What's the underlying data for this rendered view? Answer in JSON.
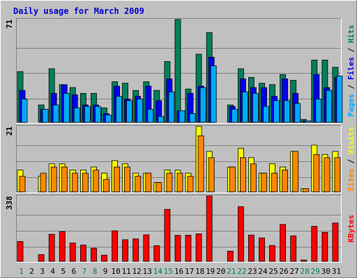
{
  "chart_data": {
    "type": "bar",
    "title": "Daily usage for March 2009",
    "days": [
      "1",
      "2",
      "3",
      "4",
      "5",
      "6",
      "7",
      "8",
      "9",
      "10",
      "11",
      "12",
      "13",
      "14",
      "15",
      "16",
      "17",
      "18",
      "19",
      "20",
      "21",
      "22",
      "23",
      "24",
      "25",
      "26",
      "27",
      "28",
      "29",
      "30",
      "31"
    ],
    "weekend_days": [
      "1",
      "7",
      "8",
      "14",
      "15",
      "21",
      "22",
      "28",
      "29"
    ],
    "panels": [
      {
        "id": "top",
        "max_label": "71",
        "ylim": [
          0,
          71
        ],
        "series": [
          {
            "name": "Hits",
            "color": "#00805c",
            "values": [
              35,
              0,
              12,
              37,
              26,
              24,
              20,
              20,
              10,
              28,
              27,
              22,
              28,
              22,
              42,
              71,
              23,
              47,
              62,
              0,
              12,
              37,
              31,
              27,
              26,
              33,
              29,
              2,
              43,
              43,
              38
            ]
          },
          {
            "name": "Files",
            "color": "#0000ee",
            "values": [
              22,
              0,
              9,
              20,
              26,
              19,
              12,
              12,
              6,
              25,
              16,
              18,
              25,
              15,
              30,
              8,
              20,
              25,
              45,
              0,
              11,
              30,
              24,
              24,
              18,
              30,
              20,
              1,
              33,
              24,
              31
            ]
          },
          {
            "name": "Pages",
            "color": "#00aaff",
            "values": [
              16,
              0,
              9,
              12,
              20,
              10,
              11,
              11,
              5,
              18,
              15,
              16,
              9,
              4,
              21,
              8,
              6,
              24,
              39,
              0,
              9,
              21,
              20,
              11,
              15,
              15,
              13,
              1,
              16,
              22,
              32
            ]
          }
        ],
        "side_labels": [
          {
            "text": "Pages",
            "color": "#00aaff"
          },
          {
            "text": " / ",
            "color": "#000000"
          },
          {
            "text": "Files",
            "color": "#0000ee"
          },
          {
            "text": " / ",
            "color": "#000000"
          },
          {
            "text": "Hits",
            "color": "#00805c"
          }
        ]
      },
      {
        "id": "middle",
        "max_label": "21",
        "ylim": [
          0,
          21
        ],
        "series": [
          {
            "name": "Visits",
            "color": "#ffff00",
            "values": [
              7,
              0,
              5,
              9,
              9,
              7,
              7,
              8,
              6,
              10,
              9,
              6,
              6,
              3,
              7,
              7,
              6,
              21,
              13,
              0,
              8,
              14,
              11,
              6,
              9,
              8,
              13,
              1,
              15,
              12,
              13
            ]
          },
          {
            "name": "Sites",
            "color": "#ff8800",
            "values": [
              5,
              0,
              6,
              8,
              8,
              6,
              6,
              7,
              4,
              8,
              8,
              5,
              6,
              3,
              6,
              6,
              5,
              18,
              11,
              0,
              8,
              11,
              9,
              6,
              6,
              7,
              13,
              1,
              12,
              11,
              11
            ]
          }
        ],
        "side_labels": [
          {
            "text": "Sites",
            "color": "#ff8800"
          },
          {
            "text": " / ",
            "color": "#000000"
          },
          {
            "text": "Visits",
            "color": "#ffff00"
          }
        ]
      },
      {
        "id": "bottom",
        "max_label": "338",
        "ylim": [
          0,
          338
        ],
        "series": [
          {
            "name": "KBytes",
            "color": "#ff0000",
            "values": [
              103,
              0,
              35,
              140,
              154,
              95,
              84,
              68,
              32,
              158,
              112,
              116,
              137,
              81,
              269,
              134,
              135,
              142,
              338,
              0,
              53,
              283,
              136,
              121,
              82,
              191,
              132,
              7,
              181,
              150,
              198
            ]
          }
        ],
        "side_labels": [
          {
            "text": "KBytes",
            "color": "#ff0000"
          }
        ]
      }
    ],
    "colors": {
      "background": "#c0c0c0",
      "title": "#0000cc",
      "day_weekday": "#000000",
      "day_weekend": "#00805c"
    }
  }
}
